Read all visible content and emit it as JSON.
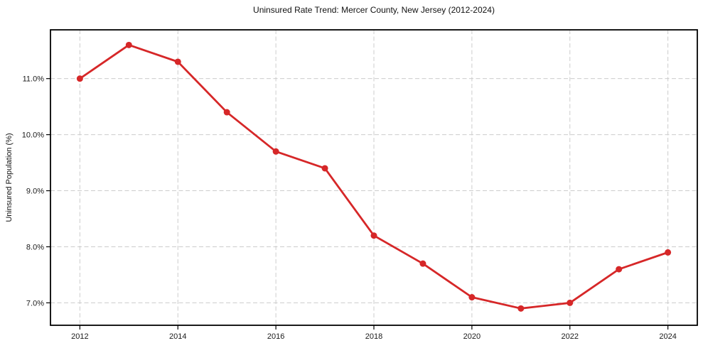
{
  "chart_data": {
    "type": "line",
    "title": "Uninsured Rate Trend: Mercer County, New Jersey (2012-2024)",
    "xlabel": "",
    "ylabel": "Uninsured Population (%)",
    "x": [
      2012,
      2013,
      2014,
      2015,
      2016,
      2017,
      2018,
      2019,
      2020,
      2021,
      2022,
      2023,
      2024
    ],
    "series": [
      {
        "name": "Uninsured rate",
        "values": [
          11.0,
          11.6,
          11.3,
          10.4,
          9.7,
          9.4,
          8.2,
          7.7,
          7.1,
          6.9,
          7.0,
          7.6,
          7.9
        ]
      }
    ],
    "x_ticks": [
      2012,
      2014,
      2016,
      2018,
      2020,
      2022,
      2024
    ],
    "x_tick_labels": [
      "2012",
      "2014",
      "2016",
      "2018",
      "2020",
      "2022",
      "2024"
    ],
    "y_ticks": [
      7.0,
      8.0,
      9.0,
      10.0,
      11.0
    ],
    "y_tick_labels": [
      "7.0%",
      "8.0%",
      "9.0%",
      "10.0%",
      "11.0%"
    ],
    "xlim": [
      2011.4,
      2024.6
    ],
    "ylim": [
      6.6,
      11.87
    ],
    "grid": true,
    "grid_style": "dashed",
    "legend": "none",
    "marker": "circle"
  },
  "colors": {
    "line": "#d62728",
    "marker": "#d62728",
    "grid": "#cccccc",
    "spine": "#000000",
    "tick_text": "#1a1a1a",
    "background": "#ffffff"
  }
}
